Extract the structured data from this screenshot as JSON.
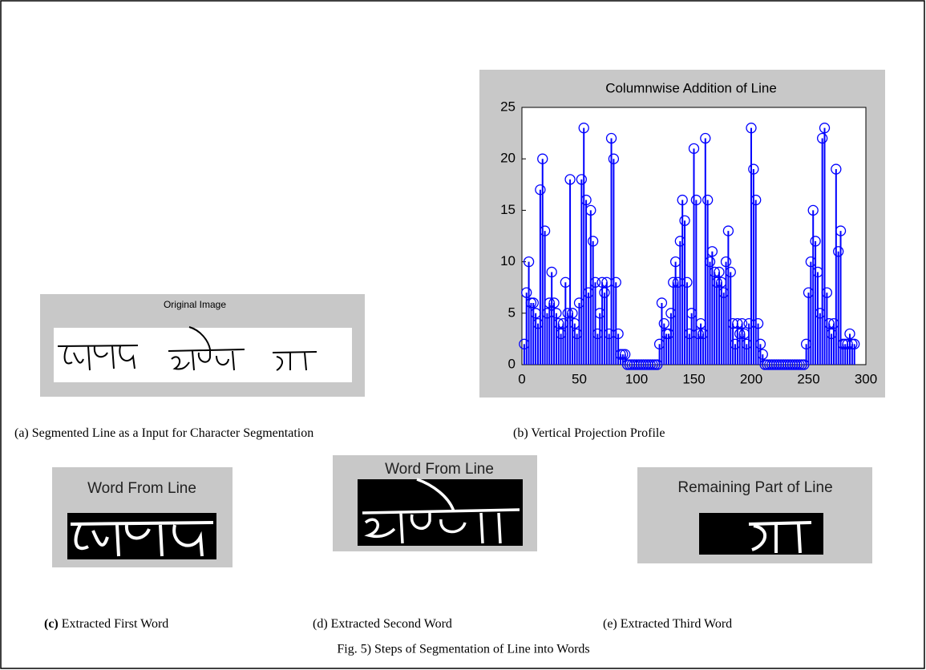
{
  "panels": {
    "a": {
      "title": "Original Image",
      "label": "(a)",
      "caption": "Segmented Line as a Input for Character Segmentation"
    },
    "b": {
      "label": "(b)",
      "caption": "Vertical Projection Profile"
    },
    "c": {
      "title": "Word From Line",
      "label": "(c)",
      "caption": "Extracted First Word"
    },
    "d": {
      "title": "Word From Line",
      "label": "(d)",
      "caption": "Extracted Second Word"
    },
    "e": {
      "title": "Remaining  Part of Line",
      "label": "(e)",
      "caption": "Extracted Third Word"
    }
  },
  "figure_caption": "Fig. 5) Steps of Segmentation of Line into Words",
  "chart_data": {
    "type": "stem",
    "title": "Columnwise Addition of Line",
    "color": "#0000ff",
    "xlim": [
      0,
      300
    ],
    "ylim": [
      0,
      25
    ],
    "xticks": [
      0,
      50,
      100,
      150,
      200,
      250,
      300
    ],
    "yticks": [
      0,
      5,
      10,
      15,
      20,
      25
    ],
    "x": [
      2,
      4,
      6,
      8,
      10,
      12,
      14,
      16,
      18,
      20,
      22,
      24,
      26,
      28,
      30,
      32,
      34,
      36,
      38,
      40,
      42,
      44,
      46,
      48,
      50,
      52,
      54,
      56,
      58,
      60,
      62,
      64,
      66,
      68,
      70,
      72,
      74,
      76,
      78,
      80,
      82,
      84,
      86,
      88,
      90,
      92,
      94,
      96,
      98,
      100,
      102,
      104,
      106,
      108,
      110,
      112,
      114,
      116,
      118,
      120,
      122,
      124,
      126,
      128,
      130,
      132,
      134,
      136,
      138,
      140,
      142,
      144,
      146,
      148,
      150,
      152,
      154,
      156,
      158,
      160,
      162,
      164,
      166,
      168,
      170,
      172,
      174,
      176,
      178,
      180,
      182,
      184,
      186,
      188,
      190,
      192,
      194,
      196,
      198,
      200,
      202,
      204,
      206,
      208,
      210,
      212,
      214,
      216,
      218,
      220,
      222,
      224,
      226,
      228,
      230,
      232,
      234,
      236,
      238,
      240,
      242,
      244,
      246,
      248,
      250,
      252,
      254,
      256,
      258,
      260,
      262,
      264,
      266,
      268,
      270,
      272,
      274,
      276,
      278,
      280,
      282,
      284,
      286,
      288,
      290
    ],
    "values": [
      2,
      7,
      10,
      6,
      6,
      5,
      4,
      17,
      20,
      13,
      5,
      6,
      9,
      6,
      5,
      4,
      3,
      4,
      8,
      5,
      18,
      5,
      4,
      3,
      6,
      18,
      23,
      16,
      7,
      15,
      12,
      8,
      3,
      5,
      8,
      7,
      8,
      3,
      22,
      20,
      8,
      3,
      1,
      1,
      1,
      0,
      0,
      0,
      0,
      0,
      0,
      0,
      0,
      0,
      0,
      0,
      0,
      0,
      0,
      2,
      6,
      4,
      3,
      3,
      5,
      8,
      10,
      8,
      12,
      16,
      14,
      8,
      3,
      5,
      21,
      16,
      3,
      4,
      3,
      22,
      16,
      10,
      11,
      9,
      8,
      9,
      8,
      7,
      10,
      13,
      9,
      4,
      2,
      4,
      3,
      4,
      3,
      2,
      4,
      23,
      19,
      16,
      4,
      2,
      1,
      0,
      0,
      0,
      0,
      0,
      0,
      0,
      0,
      0,
      0,
      0,
      0,
      0,
      0,
      0,
      0,
      0,
      0,
      2,
      7,
      10,
      15,
      12,
      9,
      5,
      22,
      23,
      7,
      4,
      3,
      4,
      19,
      11,
      13,
      2,
      2,
      2,
      3,
      2,
      2
    ]
  }
}
